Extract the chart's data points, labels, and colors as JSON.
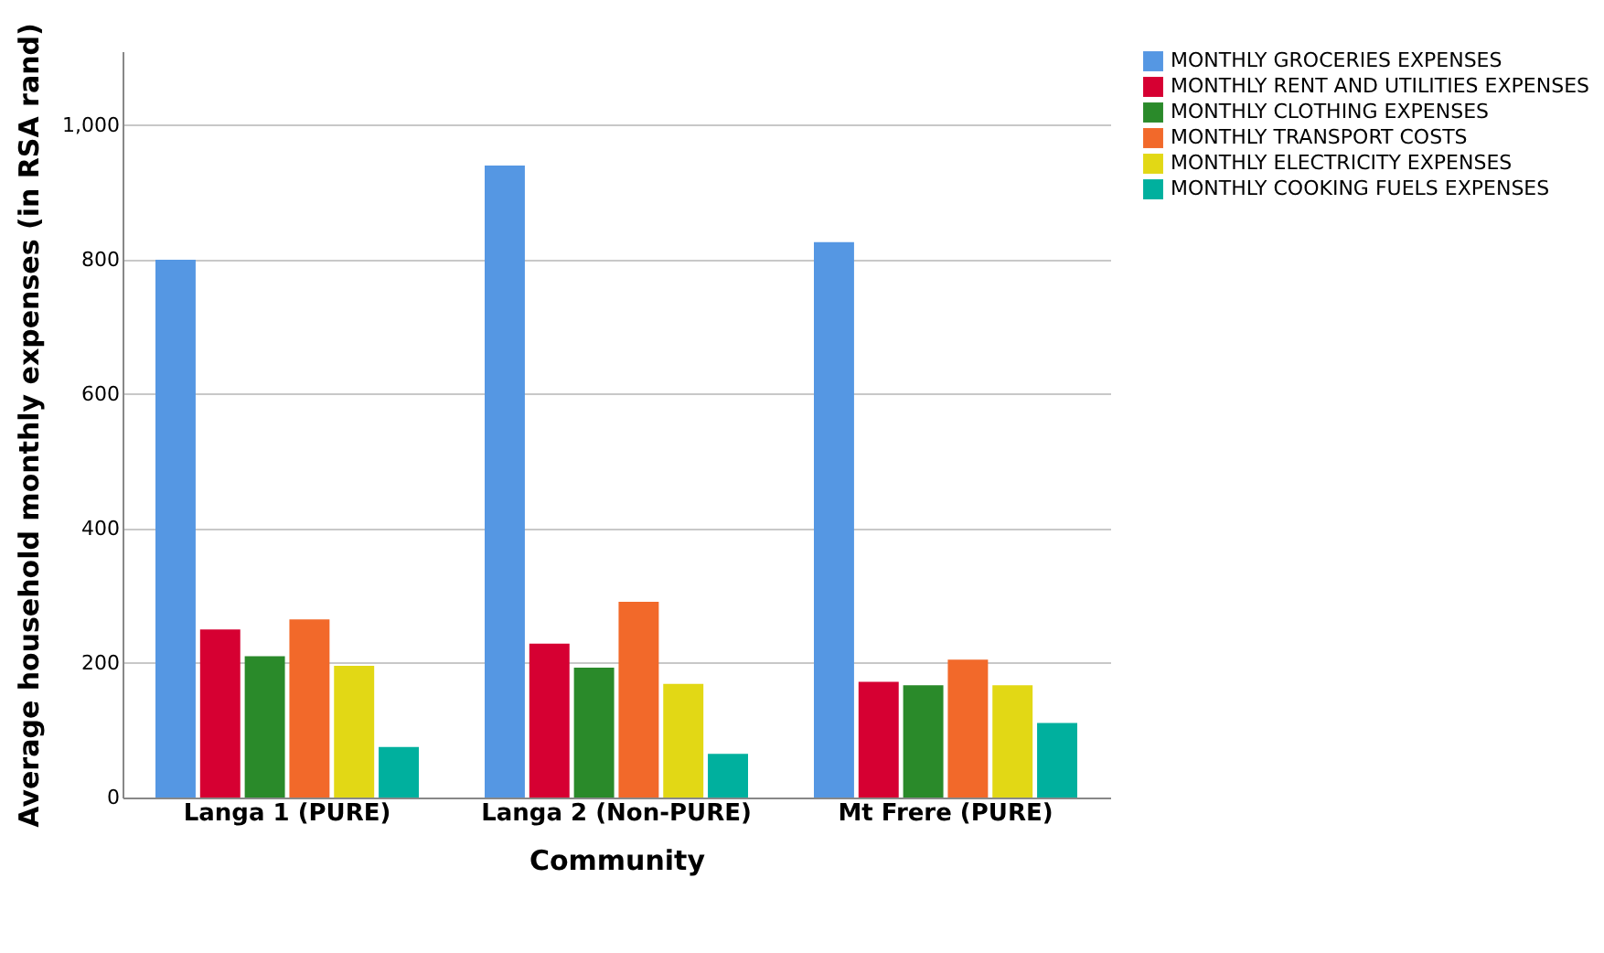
{
  "chart_data": {
    "type": "bar",
    "xlabel": "Community",
    "ylabel": "Average household monthly expenses (in RSA rand)",
    "categories": [
      "Langa 1 (PURE)",
      "Langa 2 (Non-PURE)",
      "Mt Frere (PURE)"
    ],
    "series": [
      {
        "name": "MONTHLY GROCERIES EXPENSES",
        "color": "#5597e3",
        "values": [
          800,
          940,
          826
        ]
      },
      {
        "name": "MONTHLY RENT AND UTILITIES EXPENSES",
        "color": "#d60032",
        "values": [
          250,
          229,
          172
        ]
      },
      {
        "name": "MONTHLY CLOTHING EXPENSES",
        "color": "#2a8a2a",
        "values": [
          210,
          193,
          167
        ]
      },
      {
        "name": "MONTHLY TRANSPORT COSTS",
        "color": "#f2692a",
        "values": [
          265,
          291,
          205
        ]
      },
      {
        "name": "MONTHLY ELECTRICITY EXPENSES",
        "color": "#e2d815",
        "values": [
          196,
          169,
          167
        ]
      },
      {
        "name": "MONTHLY COOKING FUELS EXPENSES",
        "color": "#00b09e",
        "values": [
          75,
          65,
          111
        ]
      }
    ],
    "ylim": [
      0,
      1110
    ],
    "yticks": [
      0,
      {
        "value": 200,
        "label": "200"
      },
      400,
      600,
      800,
      {
        "value": 1000,
        "label": "1,000"
      }
    ],
    "grid": "y",
    "legend": "top right"
  }
}
